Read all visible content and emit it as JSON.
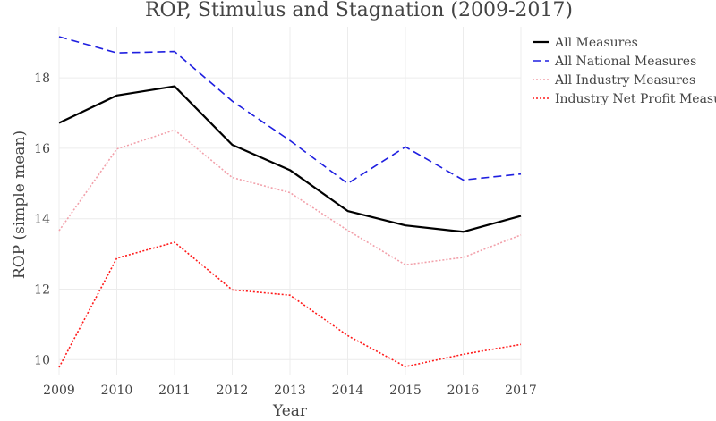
{
  "chart_data": {
    "type": "line",
    "title": "ROP, Stimulus and Stagnation (2009-2017)",
    "xlabel": "Year",
    "ylabel": "ROP (simple mean)",
    "x": [
      2009,
      2010,
      2011,
      2012,
      2013,
      2014,
      2015,
      2016,
      2017
    ],
    "x_tick_labels": [
      "2009",
      "2010",
      "2011",
      "2012",
      "2013",
      "2014",
      "2015",
      "2016",
      "2017"
    ],
    "y_ticks": [
      10,
      12,
      14,
      16,
      18
    ],
    "y_tick_labels": [
      "10",
      "12",
      "14",
      "16",
      "18"
    ],
    "ylim": [
      9.55,
      19.45
    ],
    "grid": true,
    "legend_position": "top-right",
    "series": [
      {
        "name": "All Measures",
        "color": "#000000",
        "style": "solid",
        "values": [
          16.72,
          17.5,
          17.76,
          16.1,
          15.38,
          14.22,
          13.81,
          13.63,
          14.08
        ]
      },
      {
        "name": "All National Measures",
        "color": "#1f1fe0",
        "style": "dashed",
        "values": [
          19.17,
          18.71,
          18.75,
          17.34,
          16.22,
          15.0,
          16.04,
          15.1,
          15.27
        ]
      },
      {
        "name": "All Industry Measures",
        "color": "#f2a0aa",
        "style": "dotted",
        "values": [
          13.66,
          15.98,
          16.52,
          15.17,
          14.74,
          13.67,
          12.69,
          12.9,
          13.54
        ]
      },
      {
        "name": "Industry Net Profit Measures",
        "color": "#ff1a1a",
        "style": "dotted",
        "values": [
          9.78,
          12.88,
          13.33,
          11.98,
          11.83,
          10.68,
          9.8,
          10.15,
          10.43
        ]
      }
    ]
  }
}
